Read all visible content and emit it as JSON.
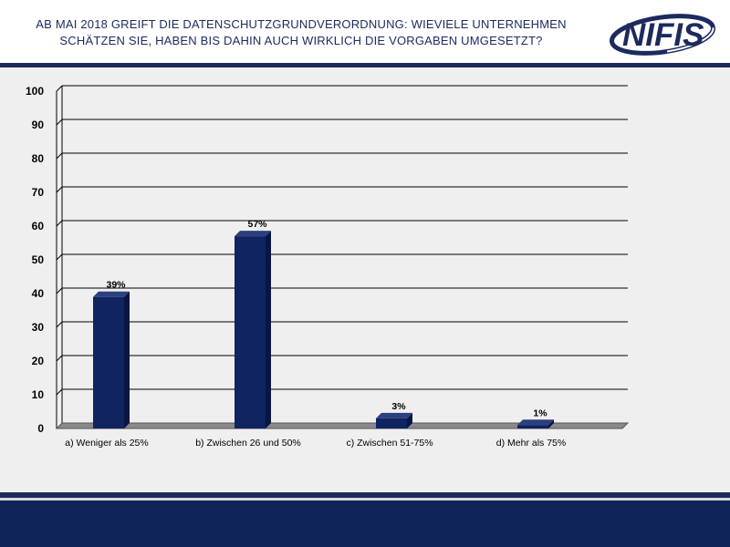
{
  "header": {
    "title_line1": "AB MAI 2018 GREIFT DIE DATENSCHUTZGRUNDVERORDNUNG: WIEVIELE UNTERNEHMEN",
    "title_line2": "SCHÄTZEN SIE, HABEN BIS DAHIN AUCH WIRKLICH DIE VORGABEN UMGESETZT?",
    "logo_text": "NIFIS"
  },
  "colors": {
    "bar": "#0f2460",
    "bar_side": "#081640",
    "bar_top": "#2c3f80",
    "navy": "#1c2a5e"
  },
  "chart_data": {
    "type": "bar",
    "categories": [
      "a) Weniger als 25%",
      "b) Zwischen 26 und 50%",
      "c) Zwischen 51-75%",
      "d) Mehr als 75%"
    ],
    "values": [
      39,
      57,
      3,
      1
    ],
    "data_labels": [
      "39%",
      "57%",
      "3%",
      "1%"
    ],
    "yticks": [
      "0",
      "10",
      "20",
      "30",
      "40",
      "50",
      "60",
      "70",
      "80",
      "90",
      "100"
    ],
    "ylim": [
      0,
      100
    ],
    "grid": true,
    "legend": "none"
  }
}
